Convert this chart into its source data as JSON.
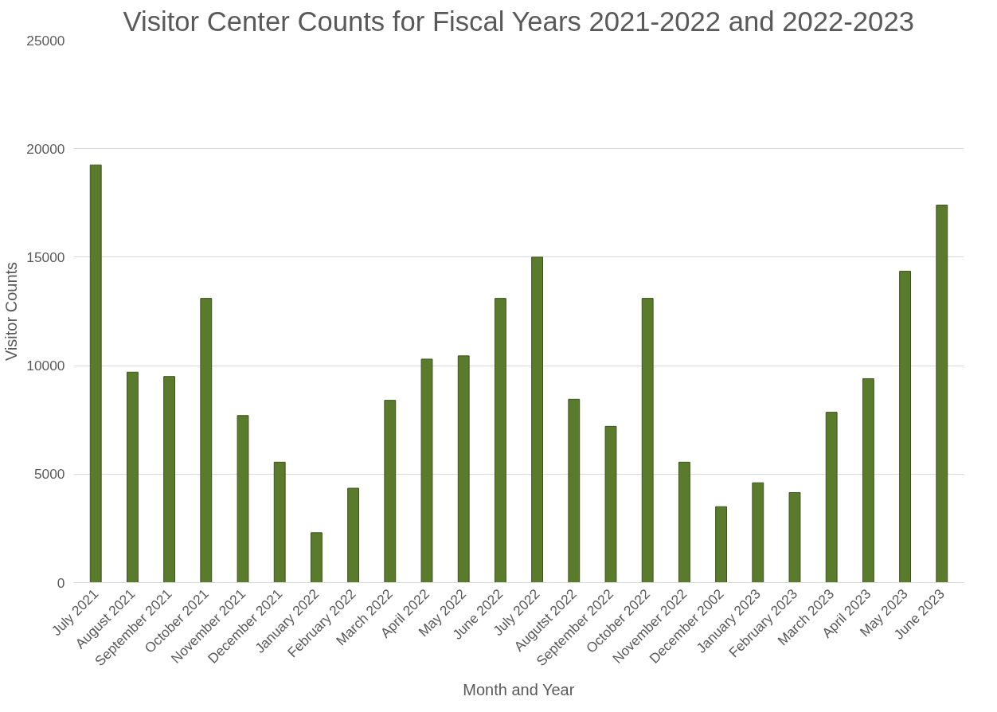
{
  "chart_data": {
    "type": "bar",
    "title": "Visitor Center Counts for Fiscal Years 2021-2022 and 2022-2023",
    "xlabel": "Month and Year",
    "ylabel": "Visitor Counts",
    "categories": [
      "July 2021",
      "August 2021",
      "September 2021",
      "October 2021",
      "November 2021",
      "December 2021",
      "January 2022",
      "February 2022",
      "March 2022",
      "April 2022",
      "May 2022",
      "June 2022",
      "July 2022",
      "Augutst 2022",
      "September 2022",
      "October 2022",
      "November 2022",
      "December 2002",
      "January 2023",
      "February 2023",
      "March 2023",
      "April 2023",
      "May 2023",
      "June 2023"
    ],
    "values": [
      19250,
      9700,
      9500,
      13100,
      7700,
      5550,
      2300,
      4350,
      8400,
      10300,
      10450,
      13100,
      15000,
      8450,
      7200,
      13100,
      5550,
      3500,
      4600,
      4150,
      7850,
      9400,
      14350,
      17400
    ],
    "color": "#5a7a2c",
    "ylim": [
      0,
      25000
    ],
    "yticks": [
      0,
      5000,
      10000,
      15000,
      20000,
      25000
    ],
    "grid": "y"
  }
}
